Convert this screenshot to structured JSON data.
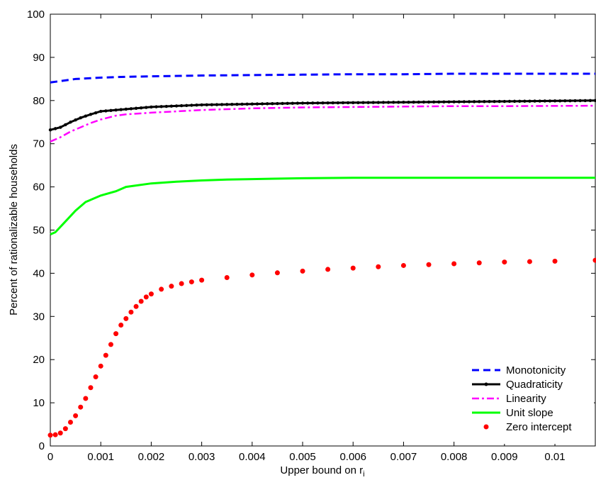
{
  "chart_data": {
    "type": "line",
    "xlabel": "Upper bound on r",
    "xlabel_subscript": "i",
    "ylabel": "Percent of rationalizable households",
    "xlim": [
      0,
      0.0108
    ],
    "ylim": [
      0,
      100
    ],
    "xticks": [
      {
        "value": 0,
        "label": "0"
      },
      {
        "value": 0.001,
        "label": "0.001"
      },
      {
        "value": 0.002,
        "label": "0.002"
      },
      {
        "value": 0.003,
        "label": "0.003"
      },
      {
        "value": 0.004,
        "label": "0.004"
      },
      {
        "value": 0.005,
        "label": "0.005"
      },
      {
        "value": 0.006,
        "label": "0.006"
      },
      {
        "value": 0.007,
        "label": "0.007"
      },
      {
        "value": 0.008,
        "label": "0.008"
      },
      {
        "value": 0.009,
        "label": "0.009"
      },
      {
        "value": 0.01,
        "label": "0.01"
      }
    ],
    "yticks": [
      {
        "value": 0,
        "label": "0"
      },
      {
        "value": 10,
        "label": "10"
      },
      {
        "value": 20,
        "label": "20"
      },
      {
        "value": 30,
        "label": "30"
      },
      {
        "value": 40,
        "label": "40"
      },
      {
        "value": 50,
        "label": "50"
      },
      {
        "value": 60,
        "label": "60"
      },
      {
        "value": 70,
        "label": "70"
      },
      {
        "value": 80,
        "label": "80"
      },
      {
        "value": 90,
        "label": "90"
      },
      {
        "value": 100,
        "label": "100"
      }
    ],
    "grid": false,
    "legend_position": "bottom-right",
    "series": [
      {
        "name": "Monotonicity",
        "color": "#0000ff",
        "style": "dashed",
        "points": [
          [
            0,
            84.2
          ],
          [
            0.0002,
            84.5
          ],
          [
            0.0005,
            85.0
          ],
          [
            0.001,
            85.3
          ],
          [
            0.0015,
            85.5
          ],
          [
            0.002,
            85.6
          ],
          [
            0.003,
            85.8
          ],
          [
            0.004,
            85.9
          ],
          [
            0.005,
            86.0
          ],
          [
            0.006,
            86.1
          ],
          [
            0.007,
            86.1
          ],
          [
            0.008,
            86.2
          ],
          [
            0.009,
            86.2
          ],
          [
            0.0108,
            86.2
          ]
        ]
      },
      {
        "name": "Quadraticity",
        "color": "#000000",
        "style": "solid-dot",
        "points": [
          [
            0,
            73.2
          ],
          [
            0.0002,
            73.8
          ],
          [
            0.0004,
            75.0
          ],
          [
            0.0006,
            76.0
          ],
          [
            0.0008,
            76.8
          ],
          [
            0.001,
            77.5
          ],
          [
            0.0015,
            78.0
          ],
          [
            0.002,
            78.5
          ],
          [
            0.003,
            79.0
          ],
          [
            0.004,
            79.2
          ],
          [
            0.005,
            79.4
          ],
          [
            0.006,
            79.5
          ],
          [
            0.007,
            79.6
          ],
          [
            0.008,
            79.7
          ],
          [
            0.009,
            79.8
          ],
          [
            0.0108,
            80.0
          ]
        ]
      },
      {
        "name": "Linearity",
        "color": "#ff00ff",
        "style": "dashdot",
        "points": [
          [
            0,
            70.5
          ],
          [
            0.0002,
            71.5
          ],
          [
            0.0004,
            72.8
          ],
          [
            0.0006,
            73.8
          ],
          [
            0.0008,
            74.8
          ],
          [
            0.001,
            75.6
          ],
          [
            0.0013,
            76.5
          ],
          [
            0.0015,
            76.8
          ],
          [
            0.002,
            77.2
          ],
          [
            0.003,
            77.8
          ],
          [
            0.004,
            78.2
          ],
          [
            0.005,
            78.4
          ],
          [
            0.006,
            78.5
          ],
          [
            0.007,
            78.6
          ],
          [
            0.008,
            78.7
          ],
          [
            0.009,
            78.7
          ],
          [
            0.0108,
            78.8
          ]
        ]
      },
      {
        "name": "Unit slope",
        "color": "#00ff00",
        "style": "solid",
        "points": [
          [
            0,
            49.0
          ],
          [
            0.0001,
            49.5
          ],
          [
            0.0003,
            52.0
          ],
          [
            0.0005,
            54.5
          ],
          [
            0.0007,
            56.5
          ],
          [
            0.001,
            58.0
          ],
          [
            0.0013,
            59.0
          ],
          [
            0.0015,
            60.0
          ],
          [
            0.002,
            60.8
          ],
          [
            0.0025,
            61.2
          ],
          [
            0.003,
            61.5
          ],
          [
            0.0035,
            61.7
          ],
          [
            0.004,
            61.8
          ],
          [
            0.005,
            62.0
          ],
          [
            0.006,
            62.1
          ],
          [
            0.007,
            62.1
          ],
          [
            0.008,
            62.1
          ],
          [
            0.009,
            62.1
          ],
          [
            0.0108,
            62.1
          ]
        ]
      },
      {
        "name": "Zero intercept",
        "color": "#ff0000",
        "style": "dots",
        "points": [
          [
            0,
            2.5
          ],
          [
            0.0001,
            2.6
          ],
          [
            0.0002,
            3.0
          ],
          [
            0.0003,
            4.0
          ],
          [
            0.0004,
            5.5
          ],
          [
            0.0005,
            7.0
          ],
          [
            0.0006,
            9.0
          ],
          [
            0.0007,
            11.0
          ],
          [
            0.0008,
            13.5
          ],
          [
            0.0009,
            16.0
          ],
          [
            0.001,
            18.5
          ],
          [
            0.0011,
            21.0
          ],
          [
            0.0012,
            23.5
          ],
          [
            0.0013,
            26.0
          ],
          [
            0.0014,
            28.0
          ],
          [
            0.0015,
            29.5
          ],
          [
            0.0016,
            31.0
          ],
          [
            0.0017,
            32.3
          ],
          [
            0.0018,
            33.5
          ],
          [
            0.0019,
            34.5
          ],
          [
            0.002,
            35.2
          ],
          [
            0.0022,
            36.3
          ],
          [
            0.0024,
            37.0
          ],
          [
            0.0026,
            37.6
          ],
          [
            0.0028,
            38.0
          ],
          [
            0.003,
            38.4
          ],
          [
            0.0035,
            39.0
          ],
          [
            0.004,
            39.6
          ],
          [
            0.0045,
            40.1
          ],
          [
            0.005,
            40.5
          ],
          [
            0.0055,
            40.9
          ],
          [
            0.006,
            41.2
          ],
          [
            0.0065,
            41.5
          ],
          [
            0.007,
            41.8
          ],
          [
            0.0075,
            42.0
          ],
          [
            0.008,
            42.2
          ],
          [
            0.0085,
            42.4
          ],
          [
            0.009,
            42.6
          ],
          [
            0.0095,
            42.7
          ],
          [
            0.01,
            42.8
          ],
          [
            0.0108,
            43.0
          ]
        ]
      }
    ]
  }
}
